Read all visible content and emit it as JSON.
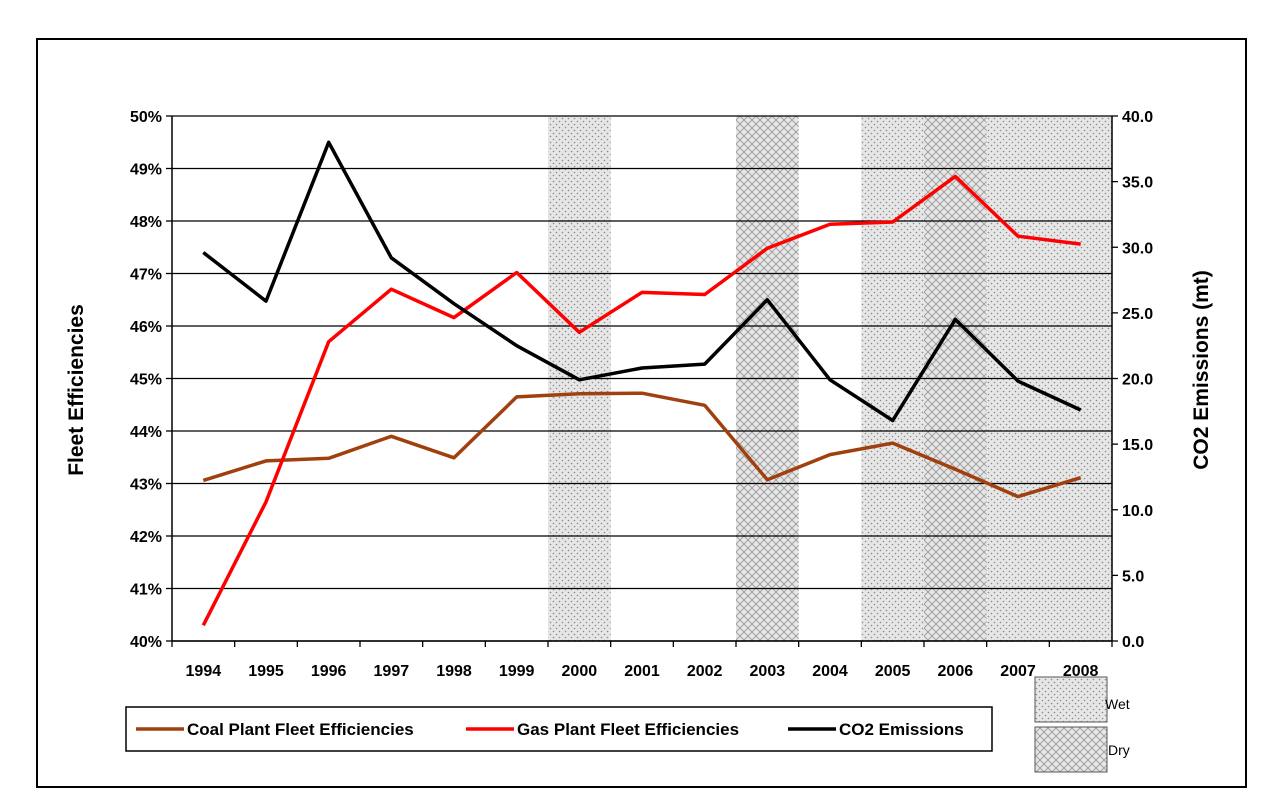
{
  "chart_data": {
    "type": "line",
    "x": [
      "1994",
      "1995",
      "1996",
      "1997",
      "1998",
      "1999",
      "2000",
      "2001",
      "2002",
      "2003",
      "2004",
      "2005",
      "2006",
      "2007",
      "2008"
    ],
    "y_left": {
      "label": "Fleet Efficiencies",
      "range": [
        0.4,
        0.5
      ],
      "ticks": [
        "40%",
        "41%",
        "42%",
        "43%",
        "44%",
        "45%",
        "46%",
        "47%",
        "48%",
        "49%",
        "50%"
      ]
    },
    "y_right": {
      "label": "CO2 Emissions (mt)",
      "range": [
        0,
        40
      ],
      "ticks": [
        "0.0",
        "5.0",
        "10.0",
        "15.0",
        "20.0",
        "25.0",
        "30.0",
        "35.0",
        "40.0"
      ]
    },
    "grid": true,
    "series": [
      {
        "name": "Coal Plant Fleet Efficiencies",
        "axis": "left",
        "color": "#a0400e",
        "values": [
          0.4306,
          0.4343,
          0.4348,
          0.439,
          0.4349,
          0.4465,
          0.4471,
          0.4472,
          0.4449,
          0.4307,
          0.4355,
          0.4377,
          0.4327,
          0.4275,
          0.4311
        ]
      },
      {
        "name": "Gas Plant Fleet Efficiencies",
        "axis": "left",
        "color": "#ff0000",
        "values": [
          0.403,
          0.4265,
          0.457,
          0.467,
          0.4616,
          0.4702,
          0.4588,
          0.4664,
          0.466,
          0.4748,
          0.4794,
          0.4798,
          0.4885,
          0.4771,
          0.4756
        ]
      },
      {
        "name": "CO2 Emissions",
        "axis": "right",
        "color": "#000000",
        "values": [
          29.6,
          25.9,
          38.0,
          29.2,
          25.7,
          22.5,
          19.9,
          20.8,
          21.1,
          26.0,
          19.9,
          16.8,
          24.5,
          19.8,
          17.6
        ]
      }
    ],
    "shaded_periods": [
      {
        "type": "wet",
        "years": [
          "2000",
          "2005",
          "2007",
          "2008"
        ]
      },
      {
        "type": "dry",
        "years": [
          "2003",
          "2006"
        ]
      }
    ],
    "legend": {
      "placement": "bottom",
      "items": [
        "Coal Plant Fleet Efficiencies",
        "Gas Plant Fleet Efficiencies",
        "CO2 Emissions"
      ]
    },
    "shading_key": {
      "wet_label": "Wet",
      "dry_label": "Dry"
    }
  }
}
